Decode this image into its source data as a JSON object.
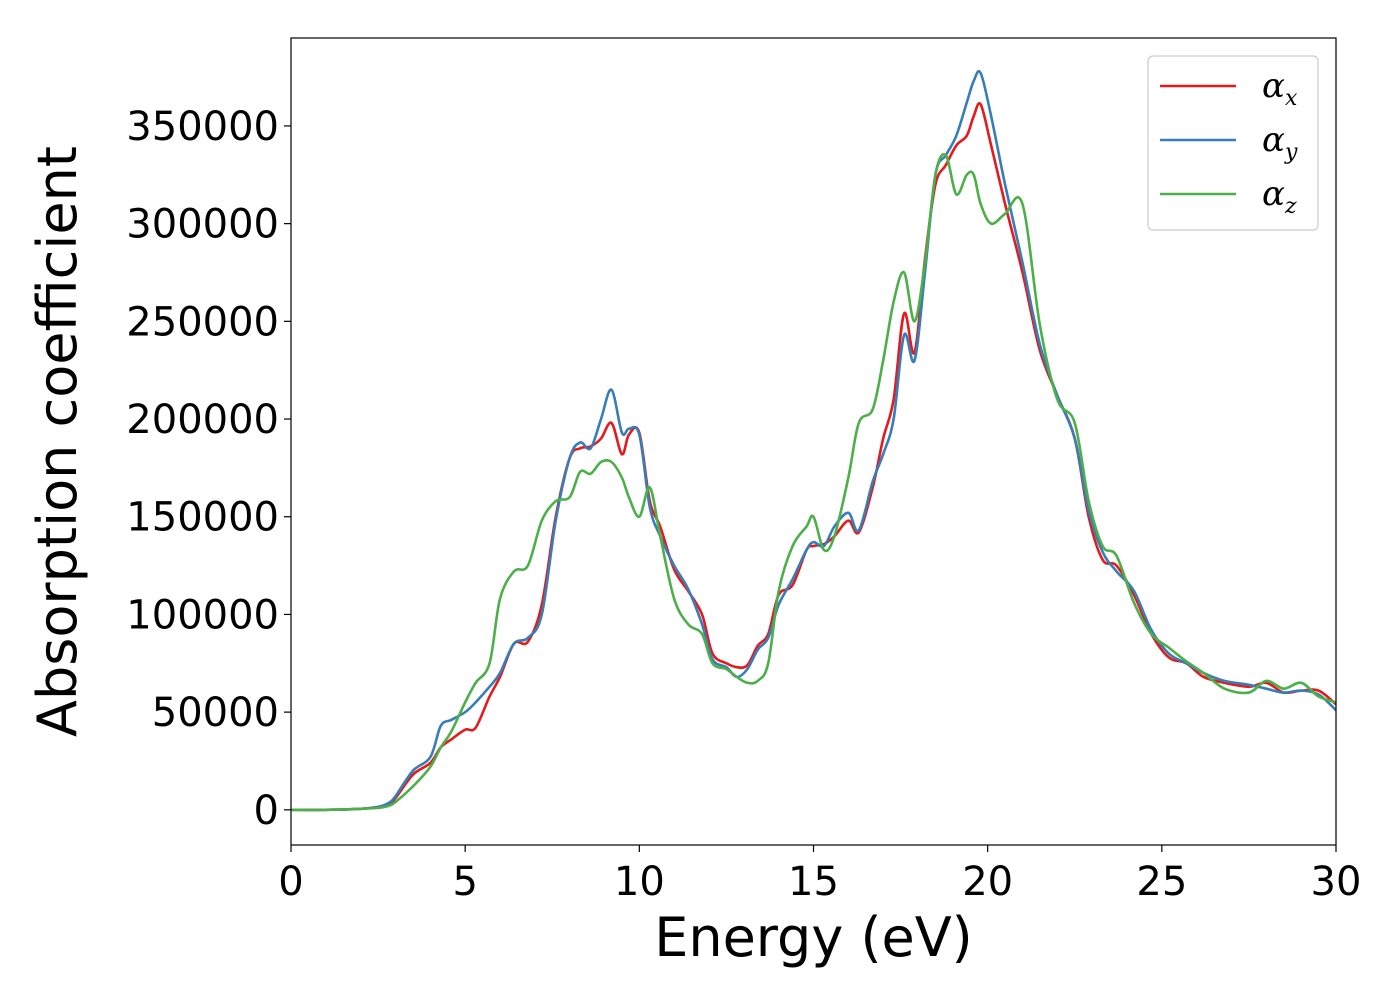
{
  "chart_data": {
    "type": "line",
    "xlabel": "Energy (eV)",
    "ylabel": "Absorption coefficient",
    "xlim": [
      0,
      30
    ],
    "ylim": [
      -18000,
      395000
    ],
    "xticks": [
      0,
      5,
      10,
      15,
      20,
      25,
      30
    ],
    "yticks": [
      0,
      50000,
      100000,
      150000,
      200000,
      250000,
      300000,
      350000
    ],
    "grid": false,
    "legend_position": "top-right",
    "series": [
      {
        "name": "αx",
        "legend_base": "α",
        "legend_sub": "x",
        "color": "#e41a1c",
        "x": [
          0,
          1,
          2,
          2.5,
          2.8,
          3.0,
          3.5,
          4.0,
          4.3,
          4.6,
          5.0,
          5.3,
          5.7,
          6.0,
          6.4,
          6.8,
          7.2,
          7.6,
          8.0,
          8.3,
          8.6,
          8.9,
          9.2,
          9.5,
          9.7,
          10.0,
          10.3,
          10.6,
          11.0,
          11.4,
          11.8,
          12.1,
          12.5,
          12.8,
          13.1,
          13.4,
          13.7,
          14.0,
          14.4,
          14.8,
          15.0,
          15.3,
          15.6,
          16.0,
          16.3,
          16.7,
          17.0,
          17.3,
          17.6,
          17.9,
          18.2,
          18.5,
          18.8,
          19.1,
          19.4,
          19.6,
          19.8,
          20.1,
          20.5,
          21.0,
          21.5,
          22.0,
          22.5,
          22.9,
          23.3,
          23.7,
          24.2,
          24.7,
          25.2,
          25.7,
          26.2,
          26.8,
          27.5,
          28.0,
          28.5,
          29.0,
          29.5,
          30.0
        ],
        "y": [
          0,
          0,
          500,
          1500,
          3000,
          6000,
          18000,
          24000,
          32000,
          36000,
          41000,
          42000,
          58000,
          68000,
          85000,
          86000,
          105000,
          150000,
          180000,
          185000,
          186000,
          190000,
          198000,
          182000,
          192000,
          193000,
          158000,
          145000,
          123000,
          112000,
          100000,
          80000,
          75000,
          73000,
          74000,
          84000,
          90000,
          110000,
          115000,
          133000,
          135000,
          136000,
          140000,
          148000,
          142000,
          165000,
          190000,
          210000,
          254000,
          234000,
          282000,
          320000,
          330000,
          340000,
          345000,
          355000,
          361000,
          340000,
          310000,
          275000,
          235000,
          212000,
          190000,
          150000,
          128000,
          125000,
          110000,
          90000,
          78000,
          75000,
          68000,
          65000,
          63000,
          65000,
          60000,
          61000,
          61000,
          54000
        ]
      },
      {
        "name": "αy",
        "legend_base": "α",
        "legend_sub": "y",
        "color": "#377eb8",
        "x": [
          0,
          1,
          2,
          2.5,
          2.8,
          3.0,
          3.5,
          4.0,
          4.3,
          4.6,
          5.0,
          5.3,
          5.7,
          6.0,
          6.4,
          6.8,
          7.2,
          7.6,
          8.0,
          8.3,
          8.6,
          8.9,
          9.2,
          9.5,
          9.7,
          10.0,
          10.3,
          10.6,
          11.0,
          11.4,
          11.8,
          12.1,
          12.5,
          12.8,
          13.1,
          13.4,
          13.7,
          14.0,
          14.4,
          14.8,
          15.0,
          15.3,
          15.6,
          16.0,
          16.3,
          16.7,
          17.0,
          17.3,
          17.6,
          17.9,
          18.2,
          18.5,
          18.8,
          19.1,
          19.4,
          19.6,
          19.8,
          20.1,
          20.5,
          21.0,
          21.5,
          22.0,
          22.5,
          22.9,
          23.3,
          23.7,
          24.2,
          24.7,
          25.2,
          25.7,
          26.2,
          26.8,
          27.5,
          28.0,
          28.5,
          29.0,
          29.5,
          30.0
        ],
        "y": [
          0,
          0,
          500,
          1500,
          3500,
          7000,
          20000,
          27000,
          43000,
          46000,
          50000,
          55000,
          63000,
          70000,
          85000,
          88000,
          100000,
          148000,
          180000,
          188000,
          185000,
          200000,
          215000,
          193000,
          195000,
          192000,
          155000,
          140000,
          125000,
          113000,
          95000,
          77000,
          73000,
          68000,
          72000,
          82000,
          88000,
          105000,
          118000,
          133000,
          137000,
          135000,
          145000,
          152000,
          143000,
          168000,
          182000,
          200000,
          243000,
          230000,
          275000,
          325000,
          335000,
          345000,
          362000,
          373000,
          377000,
          355000,
          320000,
          280000,
          238000,
          212000,
          190000,
          153000,
          132000,
          122000,
          112000,
          92000,
          80000,
          75000,
          70000,
          66000,
          64000,
          62000,
          60000,
          61000,
          59000,
          51000
        ]
      },
      {
        "name": "αz",
        "legend_base": "α",
        "legend_sub": "z",
        "color": "#4daf4a",
        "x": [
          0,
          1,
          2,
          2.5,
          2.8,
          3.0,
          3.5,
          4.0,
          4.3,
          4.6,
          5.0,
          5.3,
          5.7,
          6.0,
          6.4,
          6.8,
          7.2,
          7.6,
          8.0,
          8.3,
          8.6,
          8.9,
          9.2,
          9.5,
          9.7,
          10.0,
          10.3,
          10.6,
          11.0,
          11.4,
          11.8,
          12.1,
          12.5,
          12.8,
          13.1,
          13.4,
          13.7,
          14.0,
          14.4,
          14.8,
          15.0,
          15.3,
          15.6,
          16.0,
          16.3,
          16.7,
          17.0,
          17.3,
          17.6,
          17.9,
          18.2,
          18.5,
          18.8,
          19.1,
          19.4,
          19.6,
          19.8,
          20.1,
          20.5,
          21.0,
          21.5,
          22.0,
          22.5,
          22.9,
          23.3,
          23.7,
          24.2,
          24.7,
          25.2,
          25.7,
          26.2,
          26.8,
          27.5,
          28.0,
          28.5,
          29.0,
          29.5,
          30.0
        ],
        "y": [
          0,
          0,
          500,
          1000,
          2000,
          4000,
          12000,
          22000,
          32000,
          40000,
          55000,
          65000,
          75000,
          108000,
          122000,
          125000,
          148000,
          158000,
          160000,
          173000,
          172000,
          178000,
          178000,
          170000,
          160000,
          150000,
          165000,
          140000,
          108000,
          95000,
          90000,
          75000,
          72000,
          68000,
          65000,
          66000,
          75000,
          112000,
          135000,
          145000,
          150000,
          133000,
          140000,
          170000,
          198000,
          205000,
          230000,
          260000,
          275000,
          250000,
          280000,
          325000,
          335000,
          315000,
          325000,
          325000,
          310000,
          300000,
          305000,
          310000,
          248000,
          210000,
          198000,
          158000,
          135000,
          130000,
          106000,
          90000,
          83000,
          76000,
          70000,
          62000,
          60000,
          66000,
          62000,
          65000,
          58000,
          55000
        ]
      }
    ]
  }
}
